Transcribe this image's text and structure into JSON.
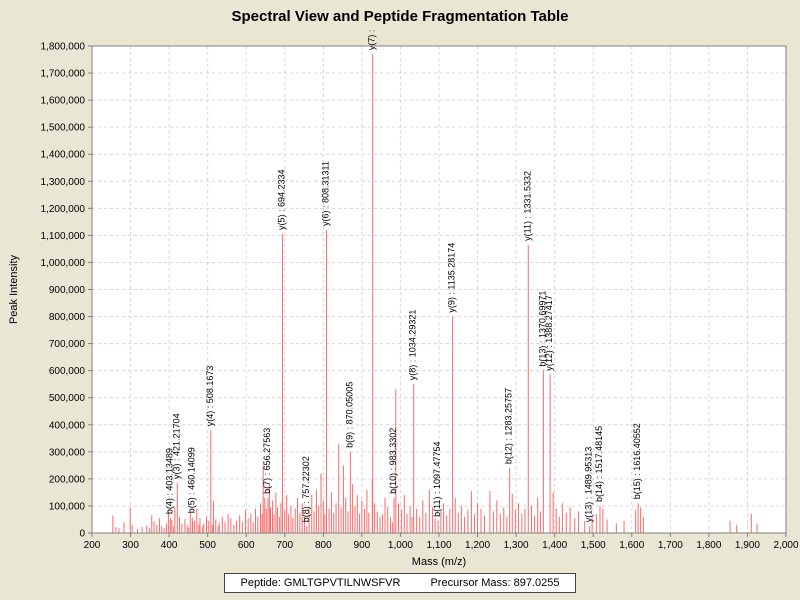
{
  "title": "Spectral View and Peptide Fragmentation Table",
  "footer": {
    "peptide": "Peptide: GMLTGPVTILNWSFVR",
    "precursor": "Precursor Mass: 897.0255"
  },
  "chart_data": {
    "type": "bar",
    "subtype": "mass-spectrum",
    "title": "Spectral View and Peptide Fragmentation Table",
    "xlabel": "Mass (m/z)",
    "ylabel": "Peak Intensity",
    "xlim": [
      200,
      2000
    ],
    "ylim": [
      0,
      1800000
    ],
    "grid": "dashed",
    "legend": "none",
    "peak_color": "#f76b6b",
    "background_color": "#e9e6d4",
    "plot_background_color": "#ffffff",
    "x_ticks": [
      200,
      300,
      400,
      500,
      600,
      700,
      800,
      900,
      1000,
      1100,
      1200,
      1300,
      1400,
      1500,
      1600,
      1700,
      1800,
      1900,
      2000
    ],
    "y_ticks": [
      0,
      100000,
      200000,
      300000,
      400000,
      500000,
      600000,
      700000,
      800000,
      900000,
      1000000,
      1100000,
      1200000,
      1300000,
      1400000,
      1500000,
      1600000,
      1700000,
      1800000
    ],
    "labeled_peaks": [
      {
        "label": "b(4) : 403.13489",
        "mz": 403.13489,
        "intensity": 55000
      },
      {
        "label": "y(3) : 421.21704",
        "mz": 421.21704,
        "intensity": 185000
      },
      {
        "label": "b(5) : 460.14099",
        "mz": 460.14099,
        "intensity": 58000
      },
      {
        "label": "y(4) : 508.1673",
        "mz": 508.1673,
        "intensity": 380000
      },
      {
        "label": "b(7) : 656.27563",
        "mz": 656.27563,
        "intensity": 130000
      },
      {
        "label": "y(5) : 694.2334",
        "mz": 694.2334,
        "intensity": 1105000
      },
      {
        "label": "b(8) : 757.22302",
        "mz": 757.22302,
        "intensity": 25000
      },
      {
        "label": "y(6) : 808.31311",
        "mz": 808.31311,
        "intensity": 1120000
      },
      {
        "label": "b(9) : 870.05005",
        "mz": 870.05005,
        "intensity": 300000
      },
      {
        "label": "y(7) :",
        "mz": 928.0,
        "intensity": 1770000
      },
      {
        "label": "b(10) : 983.3302",
        "mz": 983.3302,
        "intensity": 130000
      },
      {
        "label": "y(8) : 1034.29321",
        "mz": 1034.29321,
        "intensity": 550000
      },
      {
        "label": "b(11) : 1097.47754",
        "mz": 1097.47754,
        "intensity": 45000
      },
      {
        "label": "y(9) : 1135.28174",
        "mz": 1135.28174,
        "intensity": 800000
      },
      {
        "label": "b(12) : 1283.25757",
        "mz": 1283.25757,
        "intensity": 240000
      },
      {
        "label": "y(11) : 1331.5332",
        "mz": 1331.5332,
        "intensity": 1065000
      },
      {
        "label": "b(13) : 1370.69971",
        "mz": 1370.69971,
        "intensity": 600000
      },
      {
        "label": "y(12) : 1388.27417",
        "mz": 1388.27417,
        "intensity": 585000
      },
      {
        "label": "y(13) : 1489.95313",
        "mz": 1489.95313,
        "intensity": 25000
      },
      {
        "label": "b(14) : 1517.48145",
        "mz": 1517.48145,
        "intensity": 100000
      },
      {
        "label": "b(15) : 1616.40552",
        "mz": 1616.40552,
        "intensity": 110000
      }
    ],
    "background_peaks": [
      [
        254,
        65000
      ],
      [
        262,
        22000
      ],
      [
        270,
        18000
      ],
      [
        283,
        40000
      ],
      [
        299,
        95000
      ],
      [
        304,
        30000
      ],
      [
        318,
        15000
      ],
      [
        330,
        22000
      ],
      [
        342,
        28000
      ],
      [
        349,
        18000
      ],
      [
        355,
        65000
      ],
      [
        361,
        42000
      ],
      [
        368,
        30000
      ],
      [
        375,
        55000
      ],
      [
        381,
        25000
      ],
      [
        387,
        18000
      ],
      [
        393,
        35000
      ],
      [
        398,
        80000
      ],
      [
        407,
        48000
      ],
      [
        411,
        25000
      ],
      [
        415,
        92000
      ],
      [
        427,
        60000
      ],
      [
        433,
        35000
      ],
      [
        441,
        52000
      ],
      [
        447,
        30000
      ],
      [
        451,
        20000
      ],
      [
        455,
        75000
      ],
      [
        461,
        40000
      ],
      [
        466,
        45000
      ],
      [
        472,
        90000
      ],
      [
        477,
        30000
      ],
      [
        480,
        55000
      ],
      [
        486,
        25000
      ],
      [
        490,
        35000
      ],
      [
        497,
        60000
      ],
      [
        503,
        45000
      ],
      [
        512,
        30000
      ],
      [
        515,
        120000
      ],
      [
        521,
        50000
      ],
      [
        527,
        25000
      ],
      [
        530,
        38000
      ],
      [
        538,
        60000
      ],
      [
        545,
        40000
      ],
      [
        553,
        70000
      ],
      [
        560,
        55000
      ],
      [
        568,
        30000
      ],
      [
        575,
        45000
      ],
      [
        583,
        65000
      ],
      [
        590,
        40000
      ],
      [
        598,
        85000
      ],
      [
        605,
        55000
      ],
      [
        612,
        70000
      ],
      [
        618,
        40000
      ],
      [
        624,
        90000
      ],
      [
        630,
        60000
      ],
      [
        637,
        110000
      ],
      [
        641,
        70000
      ],
      [
        644,
        250000
      ],
      [
        648,
        130000
      ],
      [
        652,
        90000
      ],
      [
        660,
        180000
      ],
      [
        663,
        95000
      ],
      [
        668,
        120000
      ],
      [
        672,
        70000
      ],
      [
        677,
        150000
      ],
      [
        681,
        95000
      ],
      [
        686,
        60000
      ],
      [
        690,
        110000
      ],
      [
        700,
        85000
      ],
      [
        705,
        140000
      ],
      [
        710,
        70000
      ],
      [
        716,
        100000
      ],
      [
        721,
        55000
      ],
      [
        727,
        90000
      ],
      [
        733,
        130000
      ],
      [
        739,
        75000
      ],
      [
        745,
        110000
      ],
      [
        751,
        60000
      ],
      [
        763,
        95000
      ],
      [
        770,
        140000
      ],
      [
        776,
        80000
      ],
      [
        782,
        160000
      ],
      [
        788,
        100000
      ],
      [
        794,
        220000
      ],
      [
        800,
        120000
      ],
      [
        804,
        70000
      ],
      [
        815,
        90000
      ],
      [
        821,
        150000
      ],
      [
        827,
        75000
      ],
      [
        833,
        110000
      ],
      [
        840,
        330000
      ],
      [
        846,
        95000
      ],
      [
        852,
        250000
      ],
      [
        858,
        130000
      ],
      [
        864,
        80000
      ],
      [
        876,
        180000
      ],
      [
        882,
        100000
      ],
      [
        888,
        140000
      ],
      [
        894,
        70000
      ],
      [
        900,
        120000
      ],
      [
        907,
        90000
      ],
      [
        913,
        160000
      ],
      [
        918,
        75000
      ],
      [
        927,
        200000
      ],
      [
        933,
        110000
      ],
      [
        940,
        80000
      ],
      [
        947,
        60000
      ],
      [
        953,
        70000
      ],
      [
        960,
        130000
      ],
      [
        967,
        95000
      ],
      [
        974,
        60000
      ],
      [
        979,
        40000
      ],
      [
        988,
        530000
      ],
      [
        995,
        110000
      ],
      [
        1003,
        85000
      ],
      [
        1010,
        140000
      ],
      [
        1017,
        70000
      ],
      [
        1025,
        100000
      ],
      [
        1030,
        60000
      ],
      [
        1042,
        90000
      ],
      [
        1050,
        60000
      ],
      [
        1058,
        120000
      ],
      [
        1066,
        75000
      ],
      [
        1075,
        160000
      ],
      [
        1083,
        95000
      ],
      [
        1090,
        55000
      ],
      [
        1105,
        80000
      ],
      [
        1112,
        110000
      ],
      [
        1120,
        65000
      ],
      [
        1128,
        90000
      ],
      [
        1142,
        130000
      ],
      [
        1150,
        75000
      ],
      [
        1158,
        100000
      ],
      [
        1166,
        60000
      ],
      [
        1175,
        85000
      ],
      [
        1184,
        155000
      ],
      [
        1192,
        70000
      ],
      [
        1200,
        110000
      ],
      [
        1209,
        90000
      ],
      [
        1218,
        65000
      ],
      [
        1232,
        155000
      ],
      [
        1241,
        80000
      ],
      [
        1250,
        120000
      ],
      [
        1259,
        70000
      ],
      [
        1268,
        95000
      ],
      [
        1276,
        60000
      ],
      [
        1290,
        145000
      ],
      [
        1298,
        85000
      ],
      [
        1306,
        110000
      ],
      [
        1315,
        70000
      ],
      [
        1323,
        90000
      ],
      [
        1340,
        100000
      ],
      [
        1348,
        65000
      ],
      [
        1356,
        130000
      ],
      [
        1363,
        80000
      ],
      [
        1396,
        150000
      ],
      [
        1404,
        90000
      ],
      [
        1412,
        60000
      ],
      [
        1420,
        110000
      ],
      [
        1430,
        75000
      ],
      [
        1440,
        95000
      ],
      [
        1452,
        55000
      ],
      [
        1462,
        80000
      ],
      [
        1478,
        45000
      ],
      [
        1497,
        60000
      ],
      [
        1508,
        70000
      ],
      [
        1525,
        90000
      ],
      [
        1536,
        50000
      ],
      [
        1560,
        35000
      ],
      [
        1580,
        45000
      ],
      [
        1610,
        85000
      ],
      [
        1623,
        95000
      ],
      [
        1630,
        60000
      ],
      [
        1855,
        45000
      ],
      [
        1872,
        30000
      ],
      [
        1910,
        70000
      ],
      [
        1925,
        35000
      ]
    ]
  }
}
